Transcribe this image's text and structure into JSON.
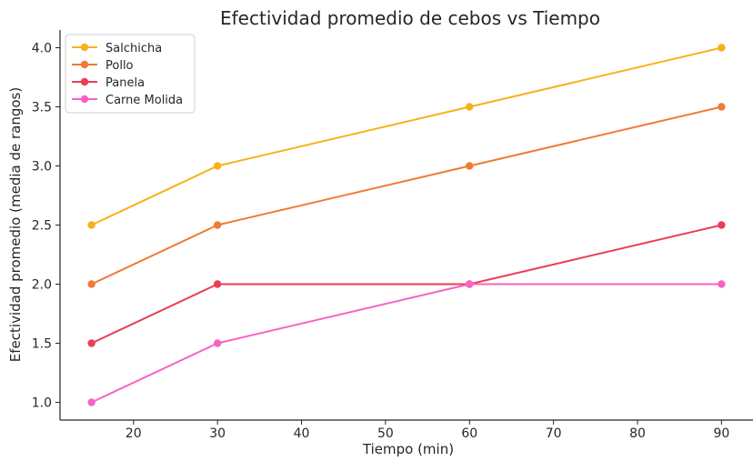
{
  "chart_data": {
    "type": "line",
    "title": "Efectividad promedio de cebos vs Tiempo",
    "xlabel": "Tiempo (min)",
    "ylabel": "Efectividad promedio (media de rangos)",
    "x": [
      15,
      30,
      60,
      90
    ],
    "xlim": [
      11.25,
      93.75
    ],
    "ylim": [
      0.85,
      4.15
    ],
    "xticks": [
      20,
      30,
      40,
      50,
      60,
      70,
      80,
      90
    ],
    "xtick_labels": [
      "20",
      "30",
      "40",
      "50",
      "60",
      "70",
      "80",
      "90"
    ],
    "yticks": [
      1.0,
      1.5,
      2.0,
      2.5,
      3.0,
      3.5,
      4.0
    ],
    "ytick_labels": [
      "1.0",
      "1.5",
      "2.0",
      "2.5",
      "3.0",
      "3.5",
      "4.0"
    ],
    "grid": false,
    "legend_position": "top-left",
    "series": [
      {
        "name": "Salchicha",
        "color": "#f6b21b",
        "values": [
          2.5,
          3.0,
          3.5,
          4.0
        ]
      },
      {
        "name": "Pollo",
        "color": "#f07b35",
        "values": [
          2.0,
          2.5,
          3.0,
          3.5
        ]
      },
      {
        "name": "Panela",
        "color": "#ea3e55",
        "values": [
          1.5,
          2.0,
          2.0,
          2.5
        ]
      },
      {
        "name": "Carne Molida",
        "color": "#f763c4",
        "values": [
          1.0,
          1.5,
          2.0,
          2.0
        ]
      }
    ]
  }
}
